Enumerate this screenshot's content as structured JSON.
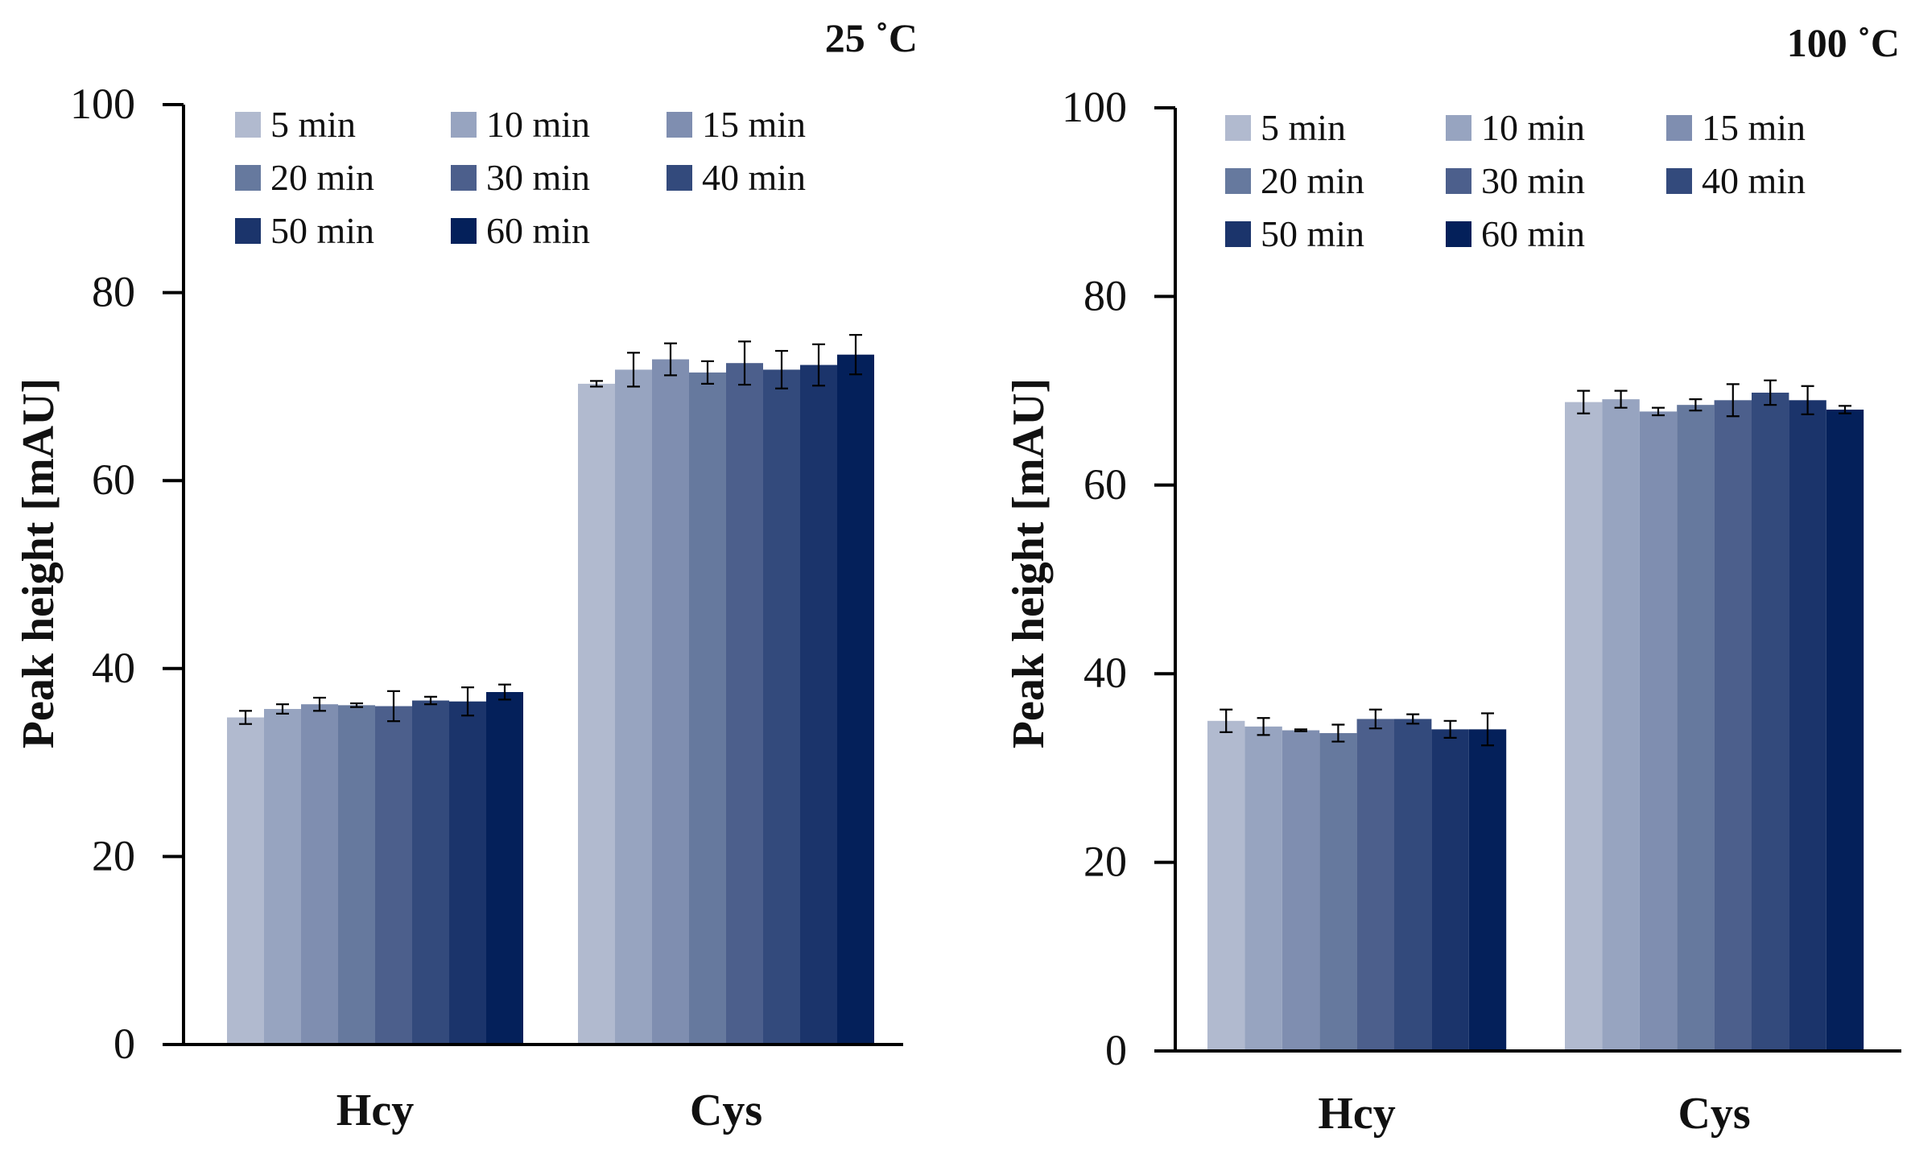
{
  "chart_data": [
    {
      "type": "bar",
      "title": "25 ˚C",
      "xlabel": "",
      "ylabel": "Peak height [mAU]",
      "ylim": [
        0,
        100
      ],
      "yticks": [
        0,
        20,
        40,
        60,
        80,
        100
      ],
      "error_bars": true,
      "grid": false,
      "legend_position": "top-left",
      "categories": [
        "Hcy",
        "Cys"
      ],
      "series": [
        {
          "name": "5 min",
          "color": "#B1BACF",
          "values": [
            34.8,
            70.3
          ],
          "errors": [
            0.7,
            0.3
          ]
        },
        {
          "name": "10 min",
          "color": "#97A4C0",
          "values": [
            35.7,
            71.8
          ],
          "errors": [
            0.5,
            1.8
          ]
        },
        {
          "name": "15 min",
          "color": "#7F8EB0",
          "values": [
            36.2,
            72.9
          ],
          "errors": [
            0.7,
            1.7
          ]
        },
        {
          "name": "20 min",
          "color": "#66799E",
          "values": [
            36.1,
            71.5
          ],
          "errors": [
            0.2,
            1.2
          ]
        },
        {
          "name": "30 min",
          "color": "#4C5F8C",
          "values": [
            36.0,
            72.5
          ],
          "errors": [
            1.6,
            2.3
          ]
        },
        {
          "name": "40 min",
          "color": "#334A7C",
          "values": [
            36.6,
            71.8
          ],
          "errors": [
            0.4,
            2.0
          ]
        },
        {
          "name": "50 min",
          "color": "#1B346B",
          "values": [
            36.5,
            72.3
          ],
          "errors": [
            1.5,
            2.2
          ]
        },
        {
          "name": "60 min",
          "color": "#04205A",
          "values": [
            37.5,
            73.4
          ],
          "errors": [
            0.8,
            2.1
          ]
        }
      ]
    },
    {
      "type": "bar",
      "title": "100 ˚C",
      "xlabel": "",
      "ylabel": "Peak height [mAU]",
      "ylim": [
        0,
        100
      ],
      "yticks": [
        0,
        20,
        40,
        60,
        80,
        100
      ],
      "error_bars": true,
      "grid": false,
      "legend_position": "top-left",
      "categories": [
        "Hcy",
        "Cys"
      ],
      "series": [
        {
          "name": "5 min",
          "color": "#B1BACF",
          "values": [
            35.0,
            68.8
          ],
          "errors": [
            1.2,
            1.2
          ]
        },
        {
          "name": "10 min",
          "color": "#97A4C0",
          "values": [
            34.4,
            69.1
          ],
          "errors": [
            0.9,
            0.9
          ]
        },
        {
          "name": "15 min",
          "color": "#7F8EB0",
          "values": [
            34.0,
            67.8
          ],
          "errors": [
            0.1,
            0.4
          ]
        },
        {
          "name": "20 min",
          "color": "#66799E",
          "values": [
            33.7,
            68.5
          ],
          "errors": [
            0.9,
            0.6
          ]
        },
        {
          "name": "30 min",
          "color": "#4C5F8C",
          "values": [
            35.2,
            69.0
          ],
          "errors": [
            1.0,
            1.7
          ]
        },
        {
          "name": "40 min",
          "color": "#334A7C",
          "values": [
            35.2,
            69.8
          ],
          "errors": [
            0.5,
            1.3
          ]
        },
        {
          "name": "50 min",
          "color": "#1B346B",
          "values": [
            34.1,
            69.0
          ],
          "errors": [
            0.9,
            1.5
          ]
        },
        {
          "name": "60 min",
          "color": "#04205A",
          "values": [
            34.1,
            68.0
          ],
          "errors": [
            1.7,
            0.4
          ]
        }
      ]
    }
  ]
}
